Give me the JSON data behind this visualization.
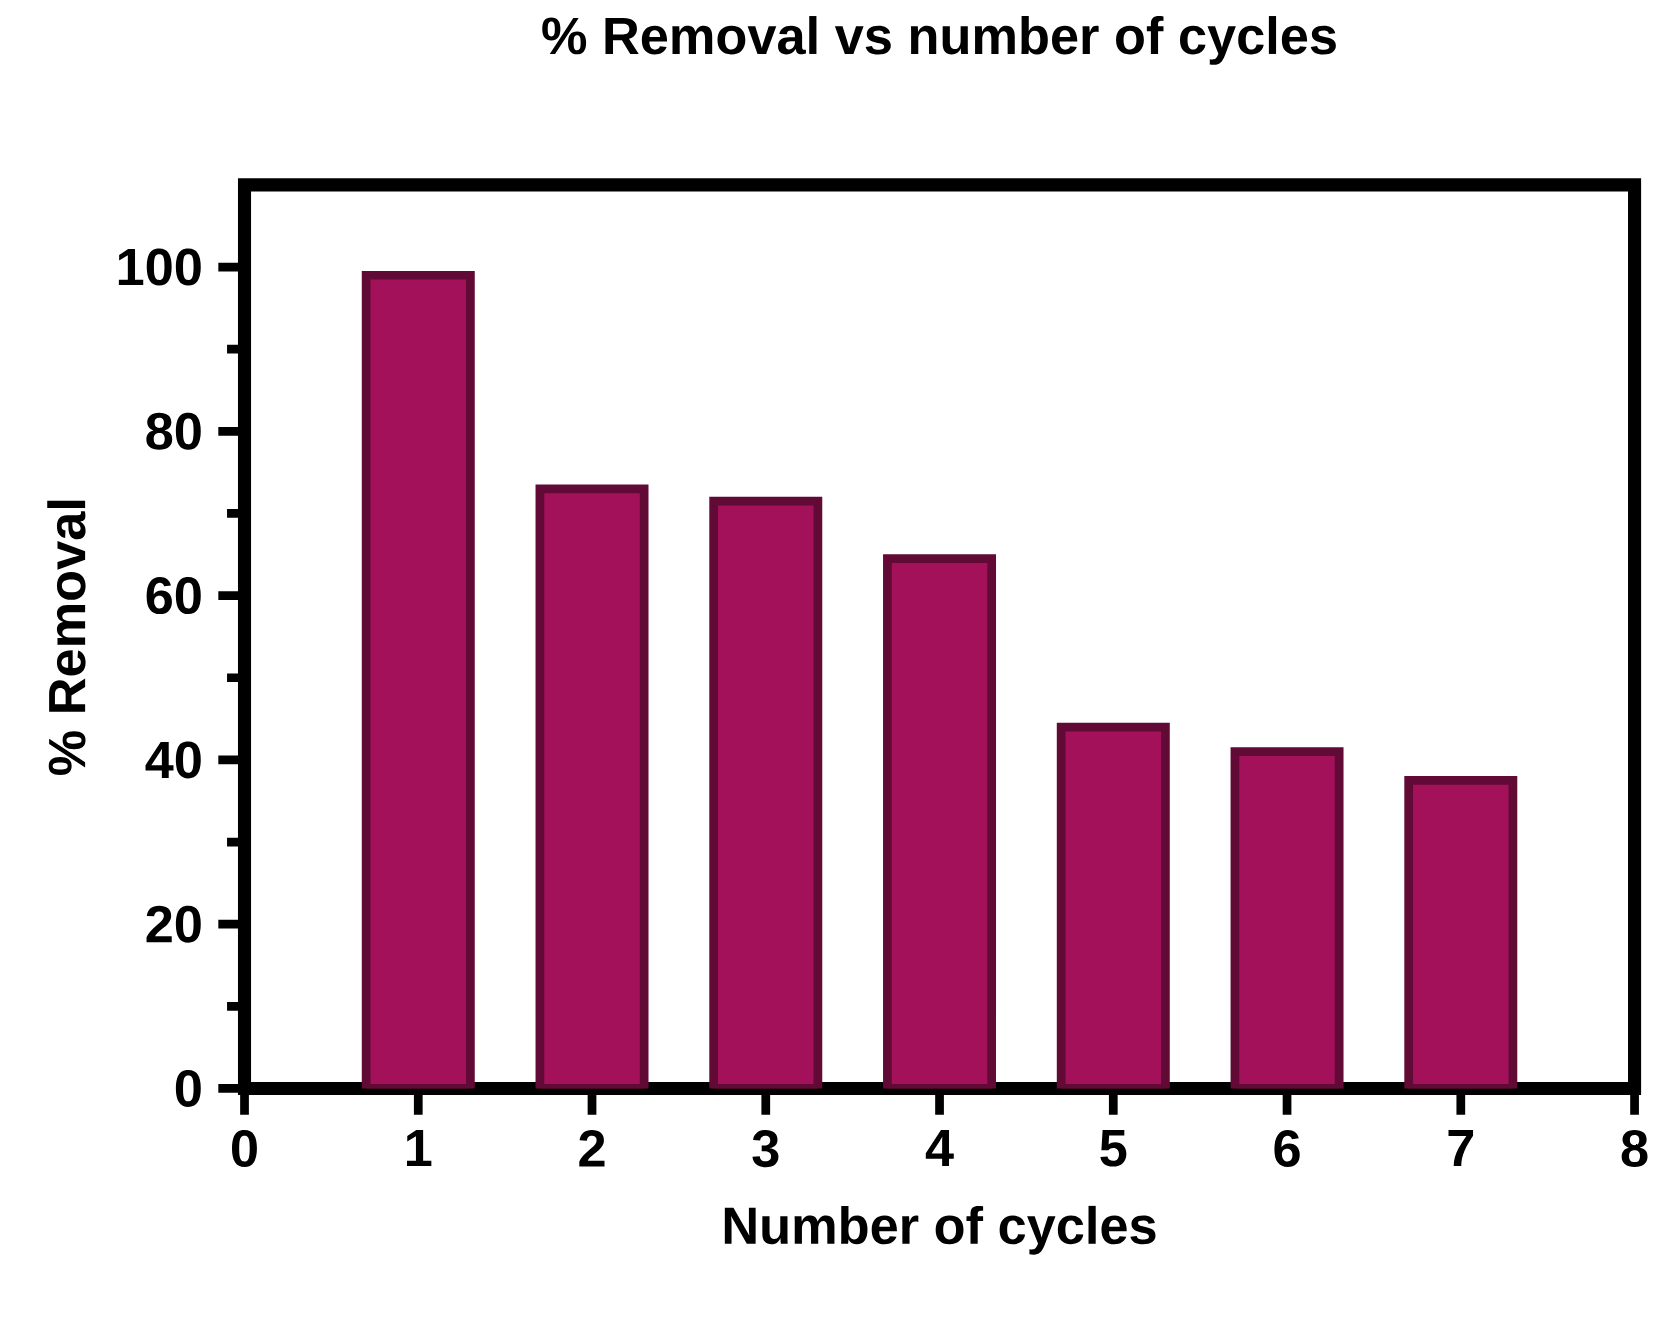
{
  "chart_data": {
    "type": "bar",
    "title": "% Removal vs number of cycles",
    "xlabel": "Number of cycles",
    "ylabel": "% Removal",
    "x": [
      1,
      2,
      3,
      4,
      5,
      6,
      7
    ],
    "values": [
      99,
      73,
      71.5,
      64.5,
      44,
      41,
      37.5
    ],
    "color": "#a3115a",
    "xlim": [
      0,
      8
    ],
    "xticks": [
      0,
      1,
      2,
      3,
      4,
      5,
      6,
      7,
      8
    ],
    "ylim": [
      0,
      110
    ],
    "yticks": [
      0,
      20,
      40,
      60,
      80,
      100
    ]
  }
}
